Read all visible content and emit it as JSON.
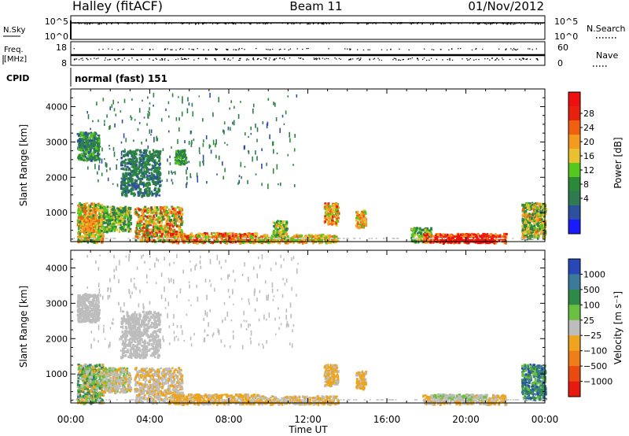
{
  "header": {
    "station": "Halley (fitACF)",
    "beam": "Beam 11",
    "date": "01/Nov/2012"
  },
  "mini_panels": {
    "nsky": {
      "label": "N.Sky",
      "ticks": [
        "10^5",
        "10^0"
      ]
    },
    "nsearch": {
      "label": "N.Search",
      "ticks": [
        "10^5",
        "10^0"
      ]
    },
    "freq": {
      "label_line1": "Freq.",
      "label_line2": "[MHz]",
      "ticks": [
        "18",
        "8"
      ]
    },
    "nave": {
      "label": "Nave",
      "ticks": [
        "60",
        "0"
      ]
    },
    "cpid": {
      "label": "CPID",
      "mode": "normal (fast) 151"
    }
  },
  "colors": {
    "power": [
      "#1a1aff",
      "#2e4fa0",
      "#2f7a50",
      "#2a8a3a",
      "#55c820",
      "#e8c030",
      "#f49a20",
      "#ef6010",
      "#e8200e",
      "#ee1010"
    ],
    "velocity": [
      "#2848b8",
      "#3a7a9a",
      "#2f8a4a",
      "#6cc040",
      "#bdbdbd",
      "#eda520",
      "#ef7d1a",
      "#e84a10",
      "#e81a10"
    ],
    "grey": "#cccccc"
  },
  "chart_data": [
    {
      "type": "heatmap",
      "name": "power",
      "xlabel": "Time UT",
      "ylabel": "Slant Range [km]",
      "xlim": [
        0,
        24
      ],
      "ylim": [
        180,
        4500
      ],
      "x_ticks": [
        "00:00",
        "04:00",
        "08:00",
        "12:00",
        "16:00",
        "20:00",
        "00:00"
      ],
      "y_ticks": [
        1000,
        2000,
        3000,
        4000
      ],
      "colorbar": {
        "label": "Power [dB]",
        "ticks": [
          "28",
          "24",
          "20",
          "16",
          "12",
          "8",
          "4"
        ],
        "range": [
          0,
          30
        ]
      },
      "regions": [
        {
          "t": [
            0.3,
            1.6
          ],
          "r": [
            200,
            1300
          ],
          "v": [
            8,
            24
          ]
        },
        {
          "t": [
            0.3,
            1.4
          ],
          "r": [
            2500,
            3300
          ],
          "v": [
            4,
            14
          ]
        },
        {
          "t": [
            0.5,
            1.3
          ],
          "r": [
            500,
            900
          ],
          "v": [
            14,
            24
          ]
        },
        {
          "t": [
            1.6,
            3.0
          ],
          "r": [
            500,
            1200
          ],
          "v": [
            6,
            18
          ]
        },
        {
          "t": [
            2.5,
            4.5
          ],
          "r": [
            1500,
            2800
          ],
          "v": [
            4,
            12
          ]
        },
        {
          "t": [
            3.2,
            5.6
          ],
          "r": [
            200,
            1200
          ],
          "v": [
            10,
            26
          ]
        },
        {
          "t": [
            5.2,
            5.8
          ],
          "r": [
            2400,
            2800
          ],
          "v": [
            6,
            14
          ]
        },
        {
          "t": [
            5.0,
            9.5
          ],
          "r": [
            180,
            450
          ],
          "v": [
            12,
            28
          ]
        },
        {
          "t": [
            9.5,
            13.5
          ],
          "r": [
            180,
            400
          ],
          "v": [
            12,
            24
          ]
        },
        {
          "t": [
            10.2,
            10.9
          ],
          "r": [
            300,
            800
          ],
          "v": [
            8,
            20
          ]
        },
        {
          "t": [
            12.8,
            13.5
          ],
          "r": [
            700,
            1300
          ],
          "v": [
            12,
            26
          ]
        },
        {
          "t": [
            14.4,
            14.9
          ],
          "r": [
            600,
            1100
          ],
          "v": [
            14,
            24
          ]
        },
        {
          "t": [
            17.2,
            18.2
          ],
          "r": [
            200,
            600
          ],
          "v": [
            8,
            18
          ]
        },
        {
          "t": [
            17.8,
            22.0
          ],
          "r": [
            180,
            430
          ],
          "v": [
            18,
            30
          ]
        },
        {
          "t": [
            18.6,
            21.4
          ],
          "r": [
            180,
            330
          ],
          "v": [
            26,
            30
          ]
        },
        {
          "t": [
            22.8,
            24.0
          ],
          "r": [
            300,
            1300
          ],
          "v": [
            6,
            22
          ]
        },
        {
          "t": [
            0.8,
            11.5
          ],
          "r": [
            1800,
            4400
          ],
          "v": [
            4,
            12
          ]
        }
      ]
    },
    {
      "type": "heatmap",
      "name": "velocity",
      "xlabel": "Time UT",
      "ylabel": "Slant Range [km]",
      "xlim": [
        0,
        24
      ],
      "ylim": [
        180,
        4500
      ],
      "x_ticks": [
        "00:00",
        "04:00",
        "08:00",
        "12:00",
        "16:00",
        "20:00",
        "00:00"
      ],
      "y_ticks": [
        1000,
        2000,
        3000,
        4000
      ],
      "colorbar": {
        "label": "Velocity [m s⁻¹]",
        "ticks": [
          "1000",
          "500",
          "100",
          "25",
          "−25",
          "−100",
          "−500",
          "−1000"
        ],
        "range": [
          -1000,
          1000
        ]
      },
      "regions": [
        {
          "t": [
            0.3,
            1.6
          ],
          "r": [
            200,
            1300
          ],
          "v": [
            -300,
            600
          ]
        },
        {
          "t": [
            0.3,
            1.4
          ],
          "r": [
            2500,
            3300
          ],
          "v": [
            -20,
            20
          ]
        },
        {
          "t": [
            1.6,
            3.0
          ],
          "r": [
            500,
            1200
          ],
          "v": [
            -200,
            200
          ]
        },
        {
          "t": [
            2.5,
            4.5
          ],
          "r": [
            1500,
            2800
          ],
          "v": [
            -20,
            20
          ]
        },
        {
          "t": [
            3.2,
            5.6
          ],
          "r": [
            200,
            1200
          ],
          "v": [
            -250,
            100
          ]
        },
        {
          "t": [
            5.0,
            9.5
          ],
          "r": [
            180,
            450
          ],
          "v": [
            -300,
            -40
          ]
        },
        {
          "t": [
            9.5,
            13.5
          ],
          "r": [
            180,
            400
          ],
          "v": [
            -200,
            -40
          ]
        },
        {
          "t": [
            12.8,
            13.5
          ],
          "r": [
            700,
            1300
          ],
          "v": [
            -250,
            -50
          ]
        },
        {
          "t": [
            14.4,
            14.9
          ],
          "r": [
            600,
            1100
          ],
          "v": [
            -250,
            -60
          ]
        },
        {
          "t": [
            17.8,
            22.0
          ],
          "r": [
            180,
            430
          ],
          "v": [
            -180,
            -40
          ]
        },
        {
          "t": [
            18.3,
            21.0
          ],
          "r": [
            300,
            450
          ],
          "v": [
            30,
            150
          ]
        },
        {
          "t": [
            22.8,
            24.0
          ],
          "r": [
            300,
            1300
          ],
          "v": [
            100,
            900
          ]
        },
        {
          "t": [
            0.8,
            11.5
          ],
          "r": [
            1800,
            4400
          ],
          "v": [
            -60,
            60
          ]
        }
      ]
    }
  ]
}
